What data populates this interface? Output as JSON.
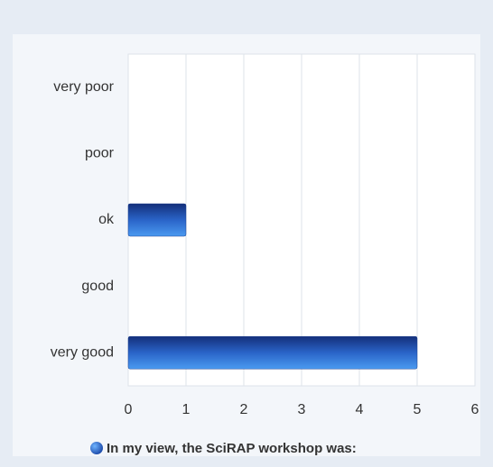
{
  "chart_data": {
    "type": "bar",
    "orientation": "horizontal",
    "categories": [
      "very poor",
      "poor",
      "ok",
      "good",
      "very good"
    ],
    "series": [
      {
        "name": "In my view, the SciRAP workshop was:",
        "color": "#2a64c8",
        "values": [
          0,
          0,
          1,
          0,
          5
        ]
      }
    ],
    "xlim": [
      0,
      6
    ],
    "xticks": [
      0,
      1,
      2,
      3,
      4,
      5,
      6
    ],
    "grid": true,
    "legend": "bottom"
  }
}
